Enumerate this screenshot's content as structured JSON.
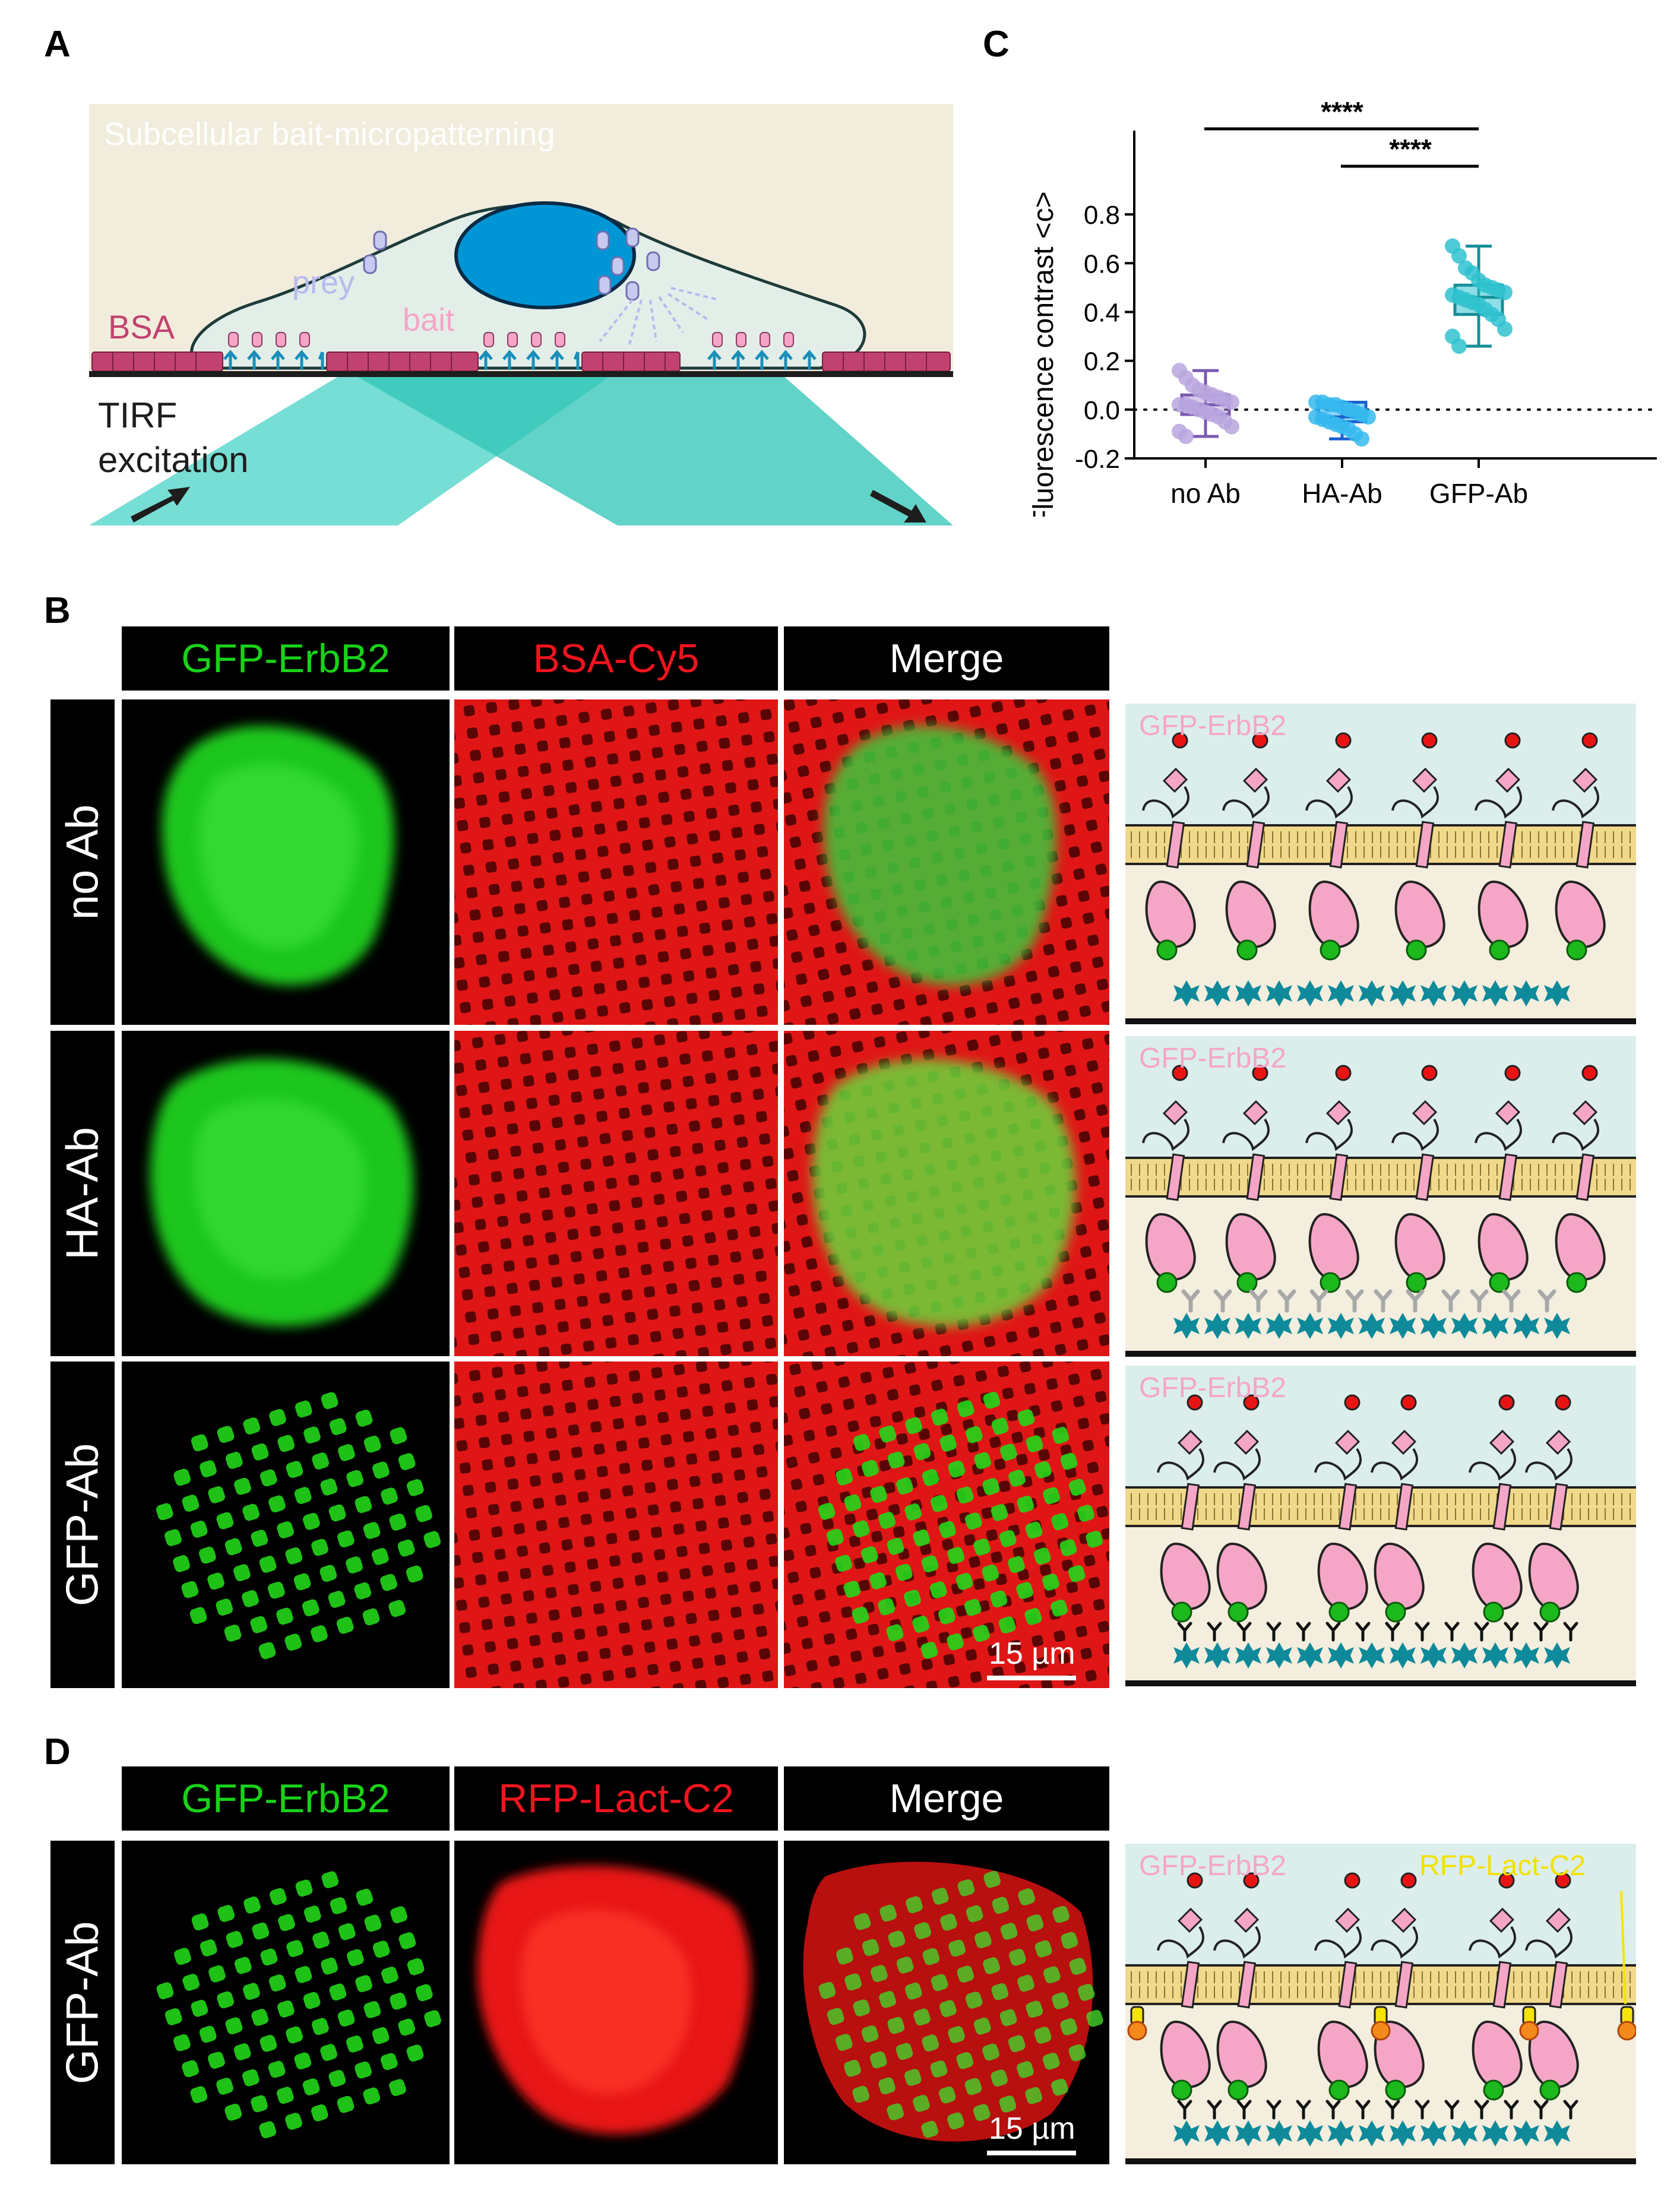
{
  "panels": {
    "a": "A",
    "b": "B",
    "c": "C",
    "d": "D"
  },
  "panel_a": {
    "title": "Subcellular bait-micropatterning",
    "labels": {
      "bsa": "BSA",
      "prey": "prey",
      "bait": "bait",
      "tirf_line1": "TIRF",
      "tirf_line2": "excitation"
    },
    "colors": {
      "background": "#f1ecdc",
      "cell": "#e3eee9",
      "nucleus": "#0096d6",
      "bsa": "#c2426f",
      "beam": "#2ec4b6"
    }
  },
  "panel_b": {
    "headers": [
      "GFP-ErbB2",
      "BSA-Cy5",
      "Merge"
    ],
    "rows": [
      "no Ab",
      "HA-Ab",
      "GFP-Ab"
    ],
    "scale_bar": "15 µm",
    "schematic_label": "GFP-ErbB2"
  },
  "panel_d": {
    "headers": [
      "GFP-ErbB2",
      "RFP-Lact-C2",
      "Merge"
    ],
    "rows": [
      "GFP-Ab"
    ],
    "scale_bar": "15 µm",
    "schematic_labels": [
      "GFP-ErbB2",
      "RFP-Lact-C2"
    ]
  },
  "header_colors": {
    "GFP-ErbB2": "#19d219",
    "BSA-Cy5": "#f0141e",
    "RFP-Lact-C2": "#f0141e",
    "Merge": "#ffffff"
  },
  "chart_data": {
    "type": "box",
    "ylabel": "Fluorescence contrast <c>",
    "categories": [
      "no Ab",
      "HA-Ab",
      "GFP-Ab"
    ],
    "ylim": [
      -0.2,
      0.9
    ],
    "yticks": [
      -0.2,
      0.0,
      0.2,
      0.4,
      0.6,
      0.8
    ],
    "ytick_labels": [
      "-0.2",
      "0.0",
      "0.2",
      "0.4",
      "0.6",
      "0.8"
    ],
    "reference_line": 0.0,
    "significance": [
      {
        "from": "no Ab",
        "to": "GFP-Ab",
        "label": "****"
      },
      {
        "from": "HA-Ab",
        "to": "GFP-Ab",
        "label": "****"
      }
    ],
    "series": [
      {
        "category": "no Ab",
        "color": "#7a5ab0",
        "fill": "#b9a5de",
        "min": -0.11,
        "q1": -0.02,
        "median": 0.02,
        "q3": 0.06,
        "max": 0.16,
        "points": [
          0.16,
          0.13,
          0.1,
          0.08,
          0.07,
          0.06,
          0.05,
          0.04,
          0.03,
          0.02,
          0.02,
          0.01,
          0.0,
          -0.01,
          -0.02,
          -0.03,
          -0.05,
          -0.07,
          -0.09,
          -0.11
        ]
      },
      {
        "category": "HA-Ab",
        "color": "#1a5fcf",
        "fill": "#35b8ef",
        "min": -0.12,
        "q1": -0.05,
        "median": -0.03,
        "q3": 0.03,
        "max": 0.03,
        "points": [
          0.03,
          0.03,
          0.02,
          0.02,
          0.01,
          0.0,
          -0.01,
          -0.02,
          -0.03,
          -0.03,
          -0.04,
          -0.05,
          -0.06,
          -0.07,
          -0.08,
          -0.1,
          -0.12
        ]
      },
      {
        "category": "GFP-Ab",
        "color": "#168f98",
        "fill": "#2fc2cf",
        "min": 0.26,
        "q1": 0.39,
        "median": 0.46,
        "q3": 0.51,
        "max": 0.67,
        "points": [
          0.67,
          0.63,
          0.58,
          0.56,
          0.53,
          0.51,
          0.5,
          0.49,
          0.48,
          0.47,
          0.46,
          0.45,
          0.44,
          0.43,
          0.41,
          0.39,
          0.37,
          0.33,
          0.3,
          0.26
        ]
      }
    ]
  }
}
